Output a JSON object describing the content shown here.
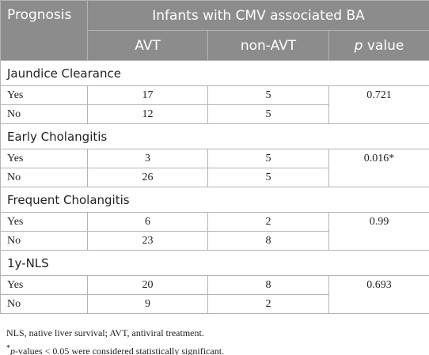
{
  "header": {
    "first": "Prognosis",
    "group": "Infants with CMV associated BA",
    "columns": [
      "AVT",
      "non-AVT"
    ],
    "p_symbol": "p",
    "p_text": "value"
  },
  "sections": [
    {
      "title": "Jaundice Clearance",
      "rows": [
        {
          "label": "Yes",
          "avt": 17,
          "non_avt": 5
        },
        {
          "label": "No",
          "avt": 12,
          "non_avt": 5
        }
      ],
      "p": "0.721"
    },
    {
      "title": "Early Cholangitis",
      "rows": [
        {
          "label": "Yes",
          "avt": 3,
          "non_avt": 5
        },
        {
          "label": "No",
          "avt": 26,
          "non_avt": 5
        }
      ],
      "p": "0.016*"
    },
    {
      "title": "Frequent Cholangitis",
      "rows": [
        {
          "label": "Yes",
          "avt": 6,
          "non_avt": 2
        },
        {
          "label": "No",
          "avt": 23,
          "non_avt": 8
        }
      ],
      "p": "0.99"
    },
    {
      "title": "1y-NLS",
      "rows": [
        {
          "label": "Yes",
          "avt": 20,
          "non_avt": 8
        },
        {
          "label": "No",
          "avt": 9,
          "non_avt": 2
        }
      ],
      "p": "0.693"
    }
  ],
  "notes": [
    {
      "text": "NLS, native liver survival; AVT, antiviral treatment."
    },
    {
      "mark": "*",
      "italic": "p",
      "text": "-values < 0.05 were considered statistically significant."
    }
  ]
}
